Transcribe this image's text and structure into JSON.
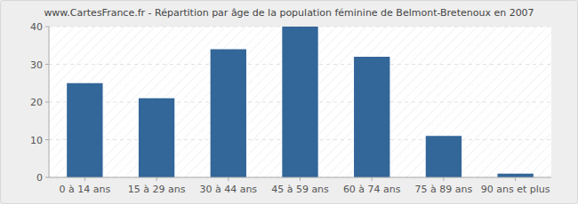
{
  "chart_data": {
    "type": "bar",
    "title": "www.CartesFrance.fr - Répartition par âge de la population féminine de Belmont-Bretenoux en 2007",
    "categories": [
      "0 à 14 ans",
      "15 à 29 ans",
      "30 à 44 ans",
      "45 à 59 ans",
      "60 à 74 ans",
      "75 à 89 ans",
      "90 ans et plus"
    ],
    "values": [
      25,
      21,
      34,
      40,
      32,
      11,
      1
    ],
    "color": "#336699",
    "ylim": [
      0,
      40
    ],
    "yticks": [
      0,
      10,
      20,
      30,
      40
    ],
    "grid": true
  }
}
